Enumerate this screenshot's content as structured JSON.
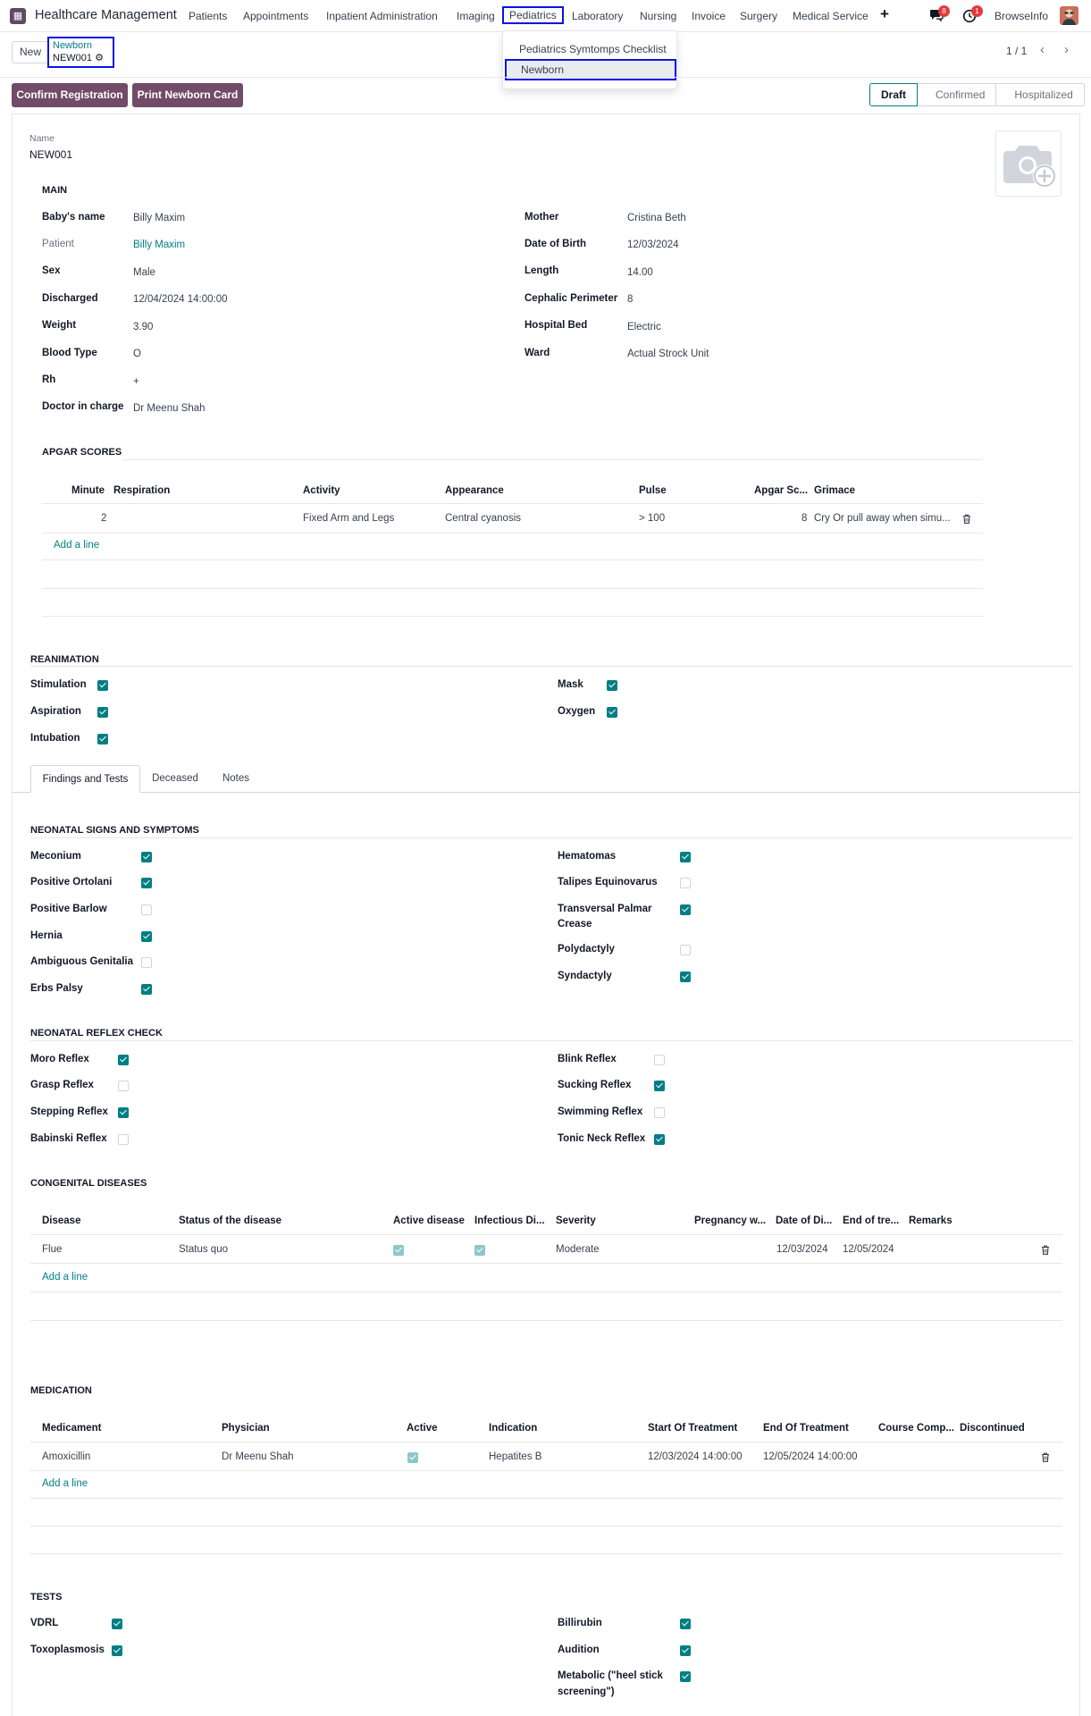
{
  "navbar": {
    "brand": "Healthcare Management",
    "menus": [
      "Patients",
      "Appointments",
      "Inpatient Administration",
      "Imaging",
      "Pediatrics",
      "Laboratory",
      "Nursing",
      "Invoice",
      "Surgery",
      "Medical Service"
    ],
    "active_menu": "Pediatrics",
    "plus_icon": "+",
    "chat_badge": "8",
    "activity_badge": "1",
    "company": "BrowseInfo"
  },
  "dropdown": {
    "items": [
      "Pediatrics Symtomps Checklist",
      "Newborn"
    ]
  },
  "control": {
    "new_label": "New",
    "breadcrumb_parent": "Newborn",
    "breadcrumb_record": "NEW001",
    "pager": "1 / 1"
  },
  "actions": {
    "confirm": "Confirm Registration",
    "print": "Print Newborn Card"
  },
  "status": {
    "stages": [
      "Draft",
      "Confirmed",
      "Hospitalized"
    ],
    "current": "Draft"
  },
  "form": {
    "name_label": "Name",
    "name_value": "NEW001",
    "main_title": "MAIN",
    "left_fields": [
      {
        "label": "Baby's name",
        "value": "Billy Maxim"
      },
      {
        "label": "Patient",
        "value": "Billy Maxim"
      },
      {
        "label": "Sex",
        "value": "Male"
      },
      {
        "label": "Discharged",
        "value": "12/04/2024 14:00:00"
      },
      {
        "label": "Weight",
        "value": "3.90"
      },
      {
        "label": "Blood Type",
        "value": "O"
      },
      {
        "label": "Rh",
        "value": "+"
      },
      {
        "label": "Doctor in charge",
        "value": "Dr Meenu Shah"
      }
    ],
    "right_fields": [
      {
        "label": "Mother",
        "value": "Cristina Beth"
      },
      {
        "label": "Date of Birth",
        "value": "12/03/2024"
      },
      {
        "label": "Length",
        "value": "14.00"
      },
      {
        "label": "Cephalic Perimeter",
        "value": "8"
      },
      {
        "label": "Hospital Bed",
        "value": "Electric"
      },
      {
        "label": "Ward",
        "value": "Actual Strock Unit"
      }
    ]
  },
  "apgar": {
    "title": "APGAR SCORES",
    "headers": [
      "Minute",
      "Respiration",
      "Activity",
      "Appearance",
      "Pulse",
      "Apgar Sc...",
      "Grimace"
    ],
    "row": [
      "2",
      "",
      "Fixed Arm and Legs",
      "Central cyanosis",
      "> 100",
      "8",
      "Cry Or pull away when simu..."
    ],
    "add_line": "Add a line"
  },
  "reanimation": {
    "title": "REANIMATION",
    "left": [
      {
        "label": "Stimulation",
        "checked": true
      },
      {
        "label": "Aspiration",
        "checked": true
      },
      {
        "label": "Intubation",
        "checked": true
      }
    ],
    "right": [
      {
        "label": "Mask",
        "checked": true
      },
      {
        "label": "Oxygen",
        "checked": true
      }
    ]
  },
  "tabs": [
    "Findings and Tests",
    "Deceased",
    "Notes"
  ],
  "neonatal_signs": {
    "title": "NEONATAL SIGNS AND SYMPTOMS",
    "left": [
      {
        "label": "Meconium",
        "checked": true
      },
      {
        "label": "Positive Ortolani",
        "checked": true
      },
      {
        "label": "Positive Barlow",
        "checked": false
      },
      {
        "label": "Hernia",
        "checked": true
      },
      {
        "label": "Ambiguous Genitalia",
        "checked": false
      },
      {
        "label": "Erbs Palsy",
        "checked": true
      }
    ],
    "right": [
      {
        "label": "Hematomas",
        "checked": true
      },
      {
        "label": "Talipes Equinovarus",
        "checked": false
      },
      {
        "label": "Transversal Palmar",
        "label2": "Crease",
        "checked": true
      },
      {
        "label": "Polydactyly",
        "checked": false
      },
      {
        "label": "Syndactyly",
        "checked": true
      }
    ]
  },
  "reflex": {
    "title": "NEONATAL REFLEX CHECK",
    "left": [
      {
        "label": "Moro Reflex",
        "checked": true
      },
      {
        "label": "Grasp Reflex",
        "checked": false
      },
      {
        "label": "Stepping Reflex",
        "checked": true
      },
      {
        "label": "Babinski Reflex",
        "checked": false
      }
    ],
    "right": [
      {
        "label": "Blink Reflex",
        "checked": false
      },
      {
        "label": "Sucking Reflex",
        "checked": true
      },
      {
        "label": "Swimming Reflex",
        "checked": false
      },
      {
        "label": "Tonic Neck Reflex",
        "checked": true
      }
    ]
  },
  "congenital": {
    "title": "CONGENITAL DISEASES",
    "headers": [
      "Disease",
      "Status of the disease",
      "Active disease",
      "Infectious Di...",
      "Severity",
      "Pregnancy w...",
      "Date of Di...",
      "End of tre...",
      "Remarks"
    ],
    "row": {
      "disease": "Flue",
      "status": "Status quo",
      "active": true,
      "infectious": true,
      "severity": "Moderate",
      "pregnancy": "",
      "date": "12/03/2024",
      "end": "12/05/2024",
      "remarks": ""
    },
    "add_line": "Add a line"
  },
  "medication": {
    "title": "MEDICATION",
    "headers": [
      "Medicament",
      "Physician",
      "Active",
      "Indication",
      "Start Of Treatment",
      "End Of Treatment",
      "Course Comp...",
      "Discontinued"
    ],
    "row": {
      "medicament": "Amoxicillin",
      "physician": "Dr Meenu Shah",
      "active": true,
      "indication": "Hepatites B",
      "start": "12/03/2024 14:00:00",
      "end": "12/05/2024 14:00:00"
    },
    "add_line": "Add a line"
  },
  "tests": {
    "title": "TESTS",
    "left": [
      {
        "label": "VDRL",
        "checked": true
      },
      {
        "label": "Toxoplasmosis",
        "checked": true
      }
    ],
    "right": [
      {
        "label": "Billirubin",
        "checked": true
      },
      {
        "label": "Audition",
        "checked": true
      },
      {
        "label": "Metabolic (\"heel stick",
        "label2": "screening\")",
        "checked": true
      }
    ]
  }
}
